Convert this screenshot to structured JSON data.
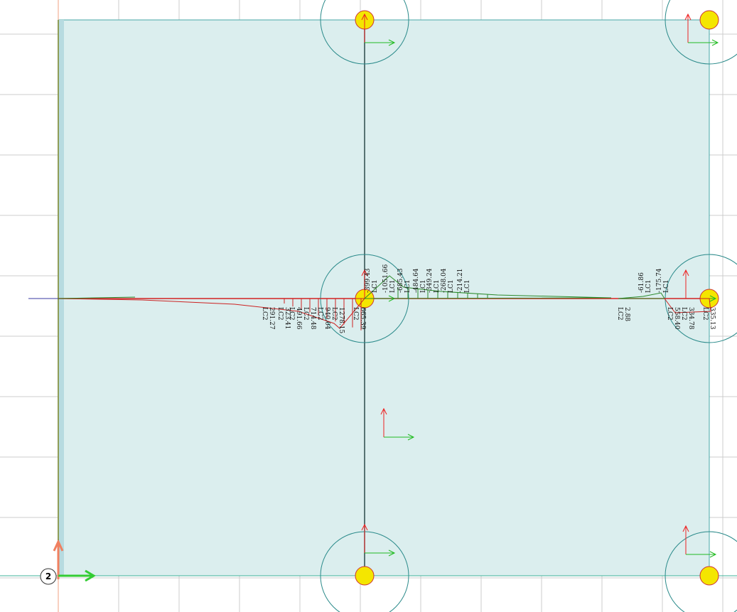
{
  "viewport": {
    "node_label": "2",
    "upper_labels": [
      {
        "value": "-399.43",
        "case": "LC1"
      },
      {
        "value": "-1051.66",
        "case": "LC1"
      },
      {
        "value": "-685.43",
        "case": "LC1"
      },
      {
        "value": "-484.64",
        "case": "LC1"
      },
      {
        "value": "-349.24",
        "case": "LC1"
      },
      {
        "value": "-268.04",
        "case": "LC1"
      },
      {
        "value": "-214.21",
        "case": "LC1"
      },
      {
        "value": "-61.86",
        "case": "LC1"
      },
      {
        "value": "-175.74",
        "case": "LC1"
      }
    ],
    "lower_labels": [
      {
        "value": "291.27",
        "case": "LC2"
      },
      {
        "value": "323.41",
        "case": "LC2"
      },
      {
        "value": "491.66",
        "case": "LC2"
      },
      {
        "value": "714.48",
        "case": "LC2"
      },
      {
        "value": "940.04",
        "case": "LC2"
      },
      {
        "value": "1278.15",
        "case": "LC2"
      },
      {
        "value": "665.39",
        "case": "LC2"
      },
      {
        "value": "2.88",
        "case": "LC2"
      },
      {
        "value": "558.40",
        "case": "LC2"
      },
      {
        "value": "334.78",
        "case": "LC2"
      },
      {
        "value": "335.13",
        "case": "LC2"
      }
    ]
  }
}
